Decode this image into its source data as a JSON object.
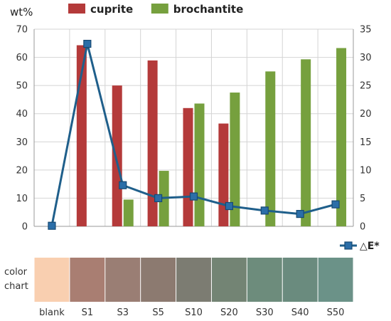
{
  "chart_data": {
    "type": "bar",
    "categories": [
      "blank",
      "S1",
      "S3",
      "S5",
      "S10",
      "S20",
      "S30",
      "S40",
      "S50"
    ],
    "y_unit_label": "wt%",
    "ylim": [
      0,
      70
    ],
    "yticks": [
      0,
      10,
      20,
      30,
      40,
      50,
      60,
      70
    ],
    "y2lim": [
      0,
      35
    ],
    "y2ticks": [
      0,
      5,
      10,
      15,
      20,
      25,
      30,
      35
    ],
    "grid": true,
    "legend_position": "top-left",
    "series": [
      {
        "name": "cuprite",
        "type": "bar",
        "axis": "left",
        "color": "#b43a3a",
        "values": [
          0,
          64.3,
          50.0,
          58.9,
          42.0,
          36.5,
          0,
          0,
          0
        ]
      },
      {
        "name": "brochantite",
        "type": "bar",
        "axis": "left",
        "color": "#76a03e",
        "values": [
          0,
          0,
          9.5,
          19.7,
          43.6,
          47.5,
          55.0,
          59.3,
          63.3
        ]
      },
      {
        "name": "△E*",
        "type": "line",
        "axis": "right",
        "color": "#1f5f8b",
        "marker": "square",
        "values": [
          0.1,
          32.4,
          7.3,
          5.0,
          5.3,
          3.6,
          2.8,
          2.2,
          3.9
        ]
      }
    ],
    "color_chart": {
      "row_label_lines": [
        "color",
        "chart"
      ],
      "swatches": [
        "#f9cfb0",
        "#a97e72",
        "#9a7e74",
        "#8c7a70",
        "#7c7c72",
        "#738474",
        "#6d8c7c",
        "#6a8b7e",
        "#6b9288"
      ]
    }
  }
}
